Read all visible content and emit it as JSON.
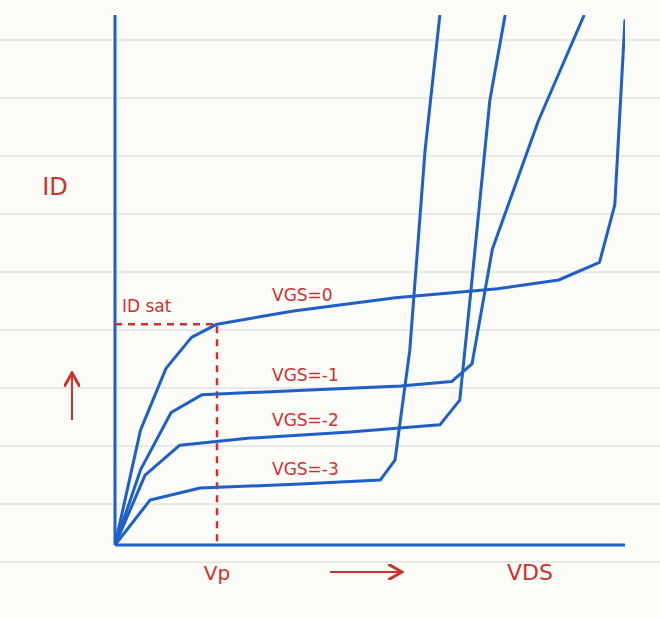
{
  "chart_data": {
    "type": "line",
    "x_label": "VDS",
    "y_label": "ID",
    "xlim": [
      0,
      10
    ],
    "ylim": [
      0,
      12
    ],
    "xticks": [],
    "yticks": [],
    "tick_labels": false,
    "grid": false,
    "color": "#1f5fc8",
    "annotations": [
      {
        "text": "ID sat",
        "y": 5
      },
      {
        "text": "Vp",
        "x": 2
      }
    ],
    "series": [
      {
        "name": "VGS=0",
        "x": [
          0,
          0.5,
          1,
          1.5,
          2,
          3.5,
          5.5,
          7.5,
          8.7,
          9.5,
          9.8,
          10
        ],
        "values": [
          0,
          2.6,
          4,
          4.7,
          5,
          5.3,
          5.6,
          5.8,
          6,
          6.4,
          7.7,
          11.9
        ]
      },
      {
        "name": "VGS=-1",
        "x": [
          0,
          0.5,
          1.1,
          1.7,
          3.6,
          5.6,
          6.6,
          7,
          7.4,
          8.3,
          9.2
        ],
        "values": [
          0,
          1.7,
          3,
          3.4,
          3.5,
          3.6,
          3.7,
          4.1,
          6.7,
          9.6,
          12
        ]
      },
      {
        "name": "VGS=-2",
        "x": [
          0,
          0.59,
          1.27,
          2.65,
          4.61,
          6.37,
          6.76,
          6.96,
          7.35,
          7.65
        ],
        "values": [
          0,
          1.58,
          2.26,
          2.42,
          2.56,
          2.72,
          3.28,
          5.54,
          10.07,
          12
        ]
      },
      {
        "name": "VGS=-3",
        "x": [
          0,
          0.69,
          1.67,
          3.63,
          5.2,
          5.49,
          5.78,
          6.08,
          6.37
        ],
        "values": [
          0,
          1.02,
          1.29,
          1.38,
          1.47,
          1.92,
          4.41,
          8.94,
          12
        ]
      }
    ]
  }
}
